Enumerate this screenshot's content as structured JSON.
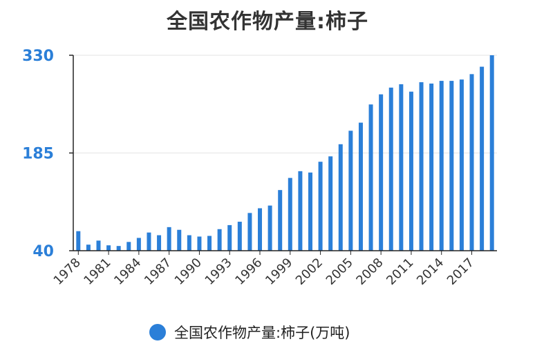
{
  "chart_data": {
    "type": "bar",
    "title": "全国农作物产量:柿子",
    "series": [
      {
        "name": "全国农作物产量:柿子(万吨)",
        "color": "#2b7fd8",
        "x": [
          1978,
          1979,
          1980,
          1981,
          1982,
          1983,
          1984,
          1985,
          1986,
          1987,
          1988,
          1989,
          1990,
          1991,
          1992,
          1993,
          1994,
          1995,
          1996,
          1997,
          1998,
          1999,
          2000,
          2001,
          2002,
          2003,
          2004,
          2005,
          2006,
          2007,
          2008,
          2009,
          2010,
          2011,
          2012,
          2013,
          2014,
          2015,
          2016,
          2017,
          2018,
          2019
        ],
        "values": [
          69,
          49,
          55,
          48,
          47,
          53,
          59,
          67,
          63,
          75,
          71,
          63,
          61,
          62,
          72,
          78,
          83,
          96,
          103,
          107,
          130,
          148,
          158,
          156,
          172,
          180,
          198,
          218,
          230,
          257,
          272,
          282,
          287,
          276,
          290,
          288,
          292,
          292,
          294,
          302,
          313,
          330
        ]
      }
    ],
    "yticks": [
      40,
      185,
      330
    ],
    "ylim": [
      40,
      330
    ],
    "xticks": [
      1978,
      1981,
      1984,
      1987,
      1990,
      1993,
      1996,
      1999,
      2002,
      2005,
      2008,
      2011,
      2014,
      2017
    ],
    "grid": true,
    "legend": "bottom-center"
  }
}
